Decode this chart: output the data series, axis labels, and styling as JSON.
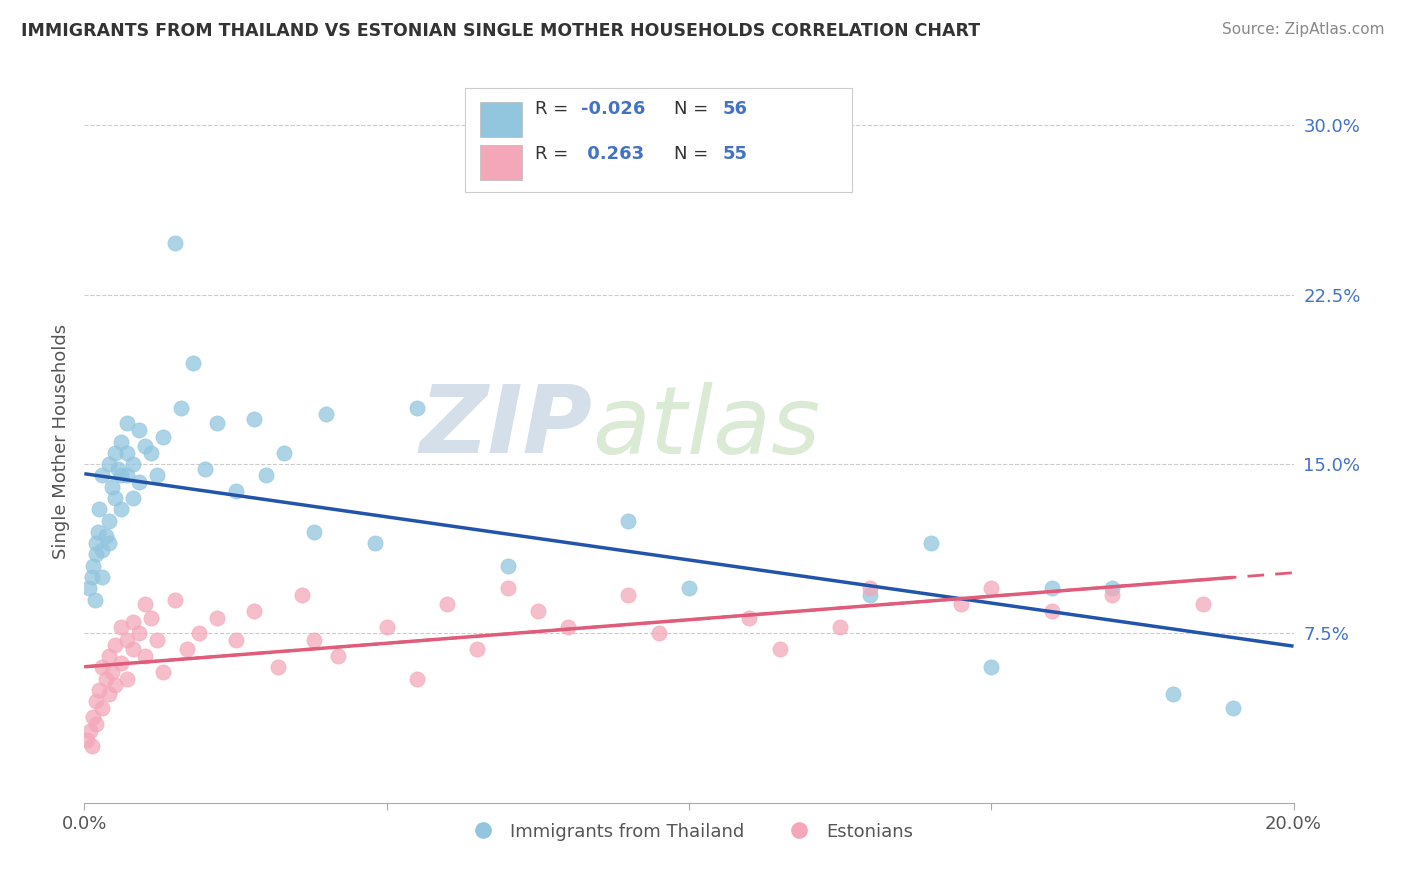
{
  "title": "IMMIGRANTS FROM THAILAND VS ESTONIAN SINGLE MOTHER HOUSEHOLDS CORRELATION CHART",
  "source": "Source: ZipAtlas.com",
  "ylabel": "Single Mother Households",
  "xlim": [
    0.0,
    0.2
  ],
  "ylim": [
    0.0,
    0.32
  ],
  "color_blue": "#92c5de",
  "color_pink": "#f4a7b9",
  "color_blue_line": "#2255aa",
  "color_pink_line": "#e05c7a",
  "watermark_zip": "ZIP",
  "watermark_atlas": "atlas",
  "thailand_x": [
    0.0008,
    0.0012,
    0.0015,
    0.0018,
    0.002,
    0.002,
    0.0022,
    0.0025,
    0.003,
    0.003,
    0.003,
    0.0035,
    0.004,
    0.004,
    0.004,
    0.0045,
    0.005,
    0.005,
    0.0055,
    0.006,
    0.006,
    0.006,
    0.007,
    0.007,
    0.007,
    0.008,
    0.008,
    0.009,
    0.009,
    0.01,
    0.011,
    0.012,
    0.013,
    0.015,
    0.016,
    0.018,
    0.02,
    0.022,
    0.025,
    0.028,
    0.03,
    0.033,
    0.038,
    0.04,
    0.048,
    0.055,
    0.07,
    0.09,
    0.1,
    0.13,
    0.14,
    0.15,
    0.16,
    0.17,
    0.18,
    0.19
  ],
  "thailand_y": [
    0.095,
    0.1,
    0.105,
    0.09,
    0.115,
    0.11,
    0.12,
    0.13,
    0.1,
    0.112,
    0.145,
    0.118,
    0.125,
    0.15,
    0.115,
    0.14,
    0.155,
    0.135,
    0.148,
    0.16,
    0.145,
    0.13,
    0.168,
    0.145,
    0.155,
    0.15,
    0.135,
    0.142,
    0.165,
    0.158,
    0.155,
    0.145,
    0.162,
    0.248,
    0.175,
    0.195,
    0.148,
    0.168,
    0.138,
    0.17,
    0.145,
    0.155,
    0.12,
    0.172,
    0.115,
    0.175,
    0.105,
    0.125,
    0.095,
    0.092,
    0.115,
    0.06,
    0.095,
    0.095,
    0.048,
    0.042
  ],
  "estonian_x": [
    0.0005,
    0.001,
    0.0012,
    0.0015,
    0.002,
    0.002,
    0.0025,
    0.003,
    0.003,
    0.0035,
    0.004,
    0.004,
    0.0045,
    0.005,
    0.005,
    0.006,
    0.006,
    0.007,
    0.007,
    0.008,
    0.008,
    0.009,
    0.01,
    0.01,
    0.011,
    0.012,
    0.013,
    0.015,
    0.017,
    0.019,
    0.022,
    0.025,
    0.028,
    0.032,
    0.036,
    0.038,
    0.042,
    0.05,
    0.055,
    0.06,
    0.065,
    0.07,
    0.075,
    0.08,
    0.09,
    0.095,
    0.11,
    0.115,
    0.125,
    0.13,
    0.145,
    0.15,
    0.16,
    0.17,
    0.185
  ],
  "estonian_y": [
    0.028,
    0.032,
    0.025,
    0.038,
    0.045,
    0.035,
    0.05,
    0.042,
    0.06,
    0.055,
    0.048,
    0.065,
    0.058,
    0.07,
    0.052,
    0.078,
    0.062,
    0.072,
    0.055,
    0.068,
    0.08,
    0.075,
    0.088,
    0.065,
    0.082,
    0.072,
    0.058,
    0.09,
    0.068,
    0.075,
    0.082,
    0.072,
    0.085,
    0.06,
    0.092,
    0.072,
    0.065,
    0.078,
    0.055,
    0.088,
    0.068,
    0.095,
    0.085,
    0.078,
    0.092,
    0.075,
    0.082,
    0.068,
    0.078,
    0.095,
    0.088,
    0.095,
    0.085,
    0.092,
    0.088
  ]
}
